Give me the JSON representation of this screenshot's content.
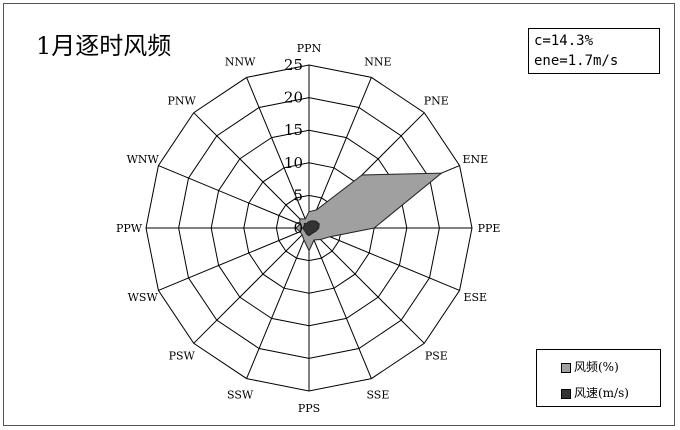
{
  "chart_data": {
    "type": "radar",
    "title": "1月逐时风频",
    "stats": [
      "c=14.3%",
      "ene=1.7m/s"
    ],
    "directions": [
      "PPN",
      "NNE",
      "PNE",
      "ENE",
      "PPE",
      "ESE",
      "PSE",
      "SSE",
      "PPS",
      "SSW",
      "PSW",
      "WSW",
      "PPW",
      "WNW",
      "PNW",
      "NNW"
    ],
    "radial_ticks": [
      0,
      5,
      10,
      15,
      20,
      25
    ],
    "rlim": [
      0,
      25
    ],
    "grid": true,
    "legend_position": "bottom-right",
    "series": [
      {
        "name": "风频(%)",
        "color": "#a0a0a0",
        "values": [
          2.5,
          3,
          11.5,
          22,
          10,
          3.5,
          2.5,
          2,
          3.5,
          2,
          1.5,
          1.5,
          2,
          1.5,
          2,
          1.5
        ]
      },
      {
        "name": "风速(m/s)",
        "color": "#333333",
        "values": [
          1,
          1.2,
          1.5,
          1.7,
          1.5,
          1.2,
          1,
          1,
          1.2,
          1,
          0.8,
          0.8,
          1,
          0.8,
          1,
          0.8
        ]
      }
    ]
  }
}
